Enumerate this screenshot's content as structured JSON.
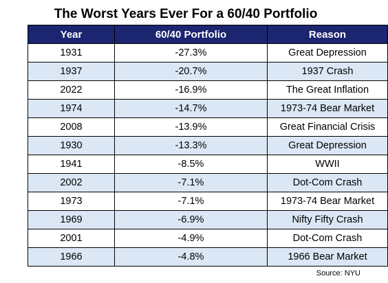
{
  "title": "The Worst Years Ever For a 60/40 Portfolio",
  "table": {
    "headers": [
      "Year",
      "60/40 Portfolio",
      "Reason"
    ],
    "rows": [
      [
        "1931",
        "-27.3%",
        "Great Depression"
      ],
      [
        "1937",
        "-20.7%",
        "1937 Crash"
      ],
      [
        "2022",
        "-16.9%",
        "The Great Inflation"
      ],
      [
        "1974",
        "-14.7%",
        "1973-74 Bear Market"
      ],
      [
        "2008",
        "-13.9%",
        "Great Financial Crisis"
      ],
      [
        "1930",
        "-13.3%",
        "Great Depression"
      ],
      [
        "1941",
        "-8.5%",
        "WWII"
      ],
      [
        "2002",
        "-7.1%",
        "Dot-Com Crash"
      ],
      [
        "1973",
        "-7.1%",
        "1973-74 Bear Market"
      ],
      [
        "1969",
        "-6.9%",
        "Nifty Fifty Crash"
      ],
      [
        "2001",
        "-4.9%",
        "Dot-Com Crash"
      ],
      [
        "1966",
        "-4.8%",
        "1966 Bear Market"
      ]
    ]
  },
  "source": "Source: NYU",
  "colors": {
    "header_background": "#1b2570",
    "header_text": "#ffffff",
    "alternate_row": "#dbe7f5",
    "row": "#ffffff",
    "border": "#000000"
  }
}
